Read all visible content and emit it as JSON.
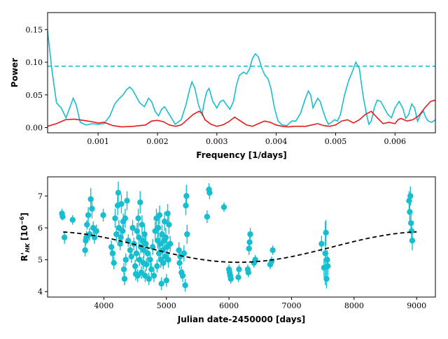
{
  "chart_data": [
    {
      "type": "line",
      "xlabel": "Frequency [1/days]",
      "ylabel": "Power",
      "xlim": [
        0.00015,
        0.00668
      ],
      "ylim": [
        -0.008,
        0.176
      ],
      "x_ticks": [
        0.001,
        0.002,
        0.003,
        0.004,
        0.005,
        0.006
      ],
      "x_tick_labels": [
        "0.001",
        "0.002",
        "0.003",
        "0.004",
        "0.005",
        "0.006"
      ],
      "y_ticks": [
        0.0,
        0.05,
        0.1,
        0.15
      ],
      "y_tick_labels": [
        "0.00",
        "0.05",
        "0.10",
        "0.15"
      ],
      "threshold": {
        "y": 0.094,
        "color": "#17becf",
        "style": "dashed"
      },
      "series": [
        {
          "color": "#17becf",
          "x": [
            0.00015,
            0.00022,
            0.0003,
            0.00038,
            0.00046,
            0.00053,
            0.00058,
            0.00063,
            0.0007,
            0.0008,
            0.0009,
            0.001,
            0.0011,
            0.0012,
            0.00128,
            0.00135,
            0.00142,
            0.00148,
            0.00153,
            0.00158,
            0.00164,
            0.0017,
            0.00178,
            0.00185,
            0.0019,
            0.00196,
            0.00202,
            0.00207,
            0.00212,
            0.0022,
            0.0023,
            0.0024,
            0.00248,
            0.00254,
            0.00258,
            0.00263,
            0.00269,
            0.00275,
            0.00279,
            0.00283,
            0.00287,
            0.00293,
            0.003,
            0.00306,
            0.00311,
            0.00316,
            0.00322,
            0.00328,
            0.00333,
            0.00338,
            0.00345,
            0.0035,
            0.00355,
            0.0036,
            0.00365,
            0.0037,
            0.00376,
            0.00381,
            0.00386,
            0.00391,
            0.00397,
            0.00403,
            0.0041,
            0.00418,
            0.00426,
            0.00433,
            0.00441,
            0.00448,
            0.00454,
            0.00458,
            0.00462,
            0.00466,
            0.0047,
            0.00474,
            0.00479,
            0.00484,
            0.00488,
            0.00493,
            0.00498,
            0.00503,
            0.00508,
            0.00515,
            0.00522,
            0.00528,
            0.00534,
            0.0054,
            0.00546,
            0.00552,
            0.00556,
            0.0056,
            0.00565,
            0.0057,
            0.00576,
            0.00582,
            0.00588,
            0.00594,
            0.006,
            0.00607,
            0.00613,
            0.00618,
            0.00623,
            0.00628,
            0.00633,
            0.00638,
            0.00643,
            0.00648,
            0.00652,
            0.00656,
            0.00662,
            0.00668
          ],
          "y": [
            0.148,
            0.09,
            0.038,
            0.03,
            0.015,
            0.032,
            0.045,
            0.035,
            0.008,
            0.004,
            0.006,
            0.005,
            0.006,
            0.018,
            0.036,
            0.044,
            0.05,
            0.058,
            0.062,
            0.058,
            0.048,
            0.038,
            0.032,
            0.045,
            0.04,
            0.025,
            0.018,
            0.028,
            0.032,
            0.02,
            0.005,
            0.012,
            0.035,
            0.058,
            0.07,
            0.06,
            0.035,
            0.02,
            0.04,
            0.055,
            0.06,
            0.04,
            0.03,
            0.04,
            0.042,
            0.035,
            0.028,
            0.04,
            0.065,
            0.08,
            0.085,
            0.082,
            0.09,
            0.106,
            0.113,
            0.108,
            0.09,
            0.08,
            0.075,
            0.06,
            0.03,
            0.01,
            0.004,
            0.003,
            0.01,
            0.01,
            0.022,
            0.042,
            0.056,
            0.05,
            0.03,
            0.038,
            0.045,
            0.04,
            0.025,
            0.012,
            0.005,
            0.008,
            0.012,
            0.01,
            0.02,
            0.05,
            0.072,
            0.085,
            0.1,
            0.09,
            0.05,
            0.02,
            0.005,
            0.01,
            0.03,
            0.042,
            0.04,
            0.03,
            0.02,
            0.015,
            0.03,
            0.04,
            0.03,
            0.014,
            0.02,
            0.036,
            0.03,
            0.01,
            0.02,
            0.025,
            0.015,
            0.01,
            0.008,
            0.012
          ]
        },
        {
          "color": "#e41a1c",
          "x": [
            0.00015,
            0.0003,
            0.00045,
            0.0006,
            0.00075,
            0.0009,
            0.001,
            0.0011,
            0.00125,
            0.0014,
            0.0016,
            0.0018,
            0.0019,
            0.002,
            0.0021,
            0.0022,
            0.0023,
            0.0024,
            0.0025,
            0.0026,
            0.0027,
            0.00275,
            0.0028,
            0.0029,
            0.003,
            0.0031,
            0.0032,
            0.0033,
            0.0034,
            0.0035,
            0.0036,
            0.0037,
            0.0038,
            0.0039,
            0.004,
            0.0041,
            0.0042,
            0.0043,
            0.0044,
            0.0045,
            0.0046,
            0.0047,
            0.0048,
            0.0049,
            0.005,
            0.0051,
            0.0052,
            0.0053,
            0.0054,
            0.0055,
            0.0056,
            0.0057,
            0.0058,
            0.0059,
            0.006,
            0.00605,
            0.0061,
            0.0062,
            0.0063,
            0.0064,
            0.0065,
            0.0066,
            0.00668
          ],
          "y": [
            0.002,
            0.006,
            0.012,
            0.013,
            0.011,
            0.009,
            0.007,
            0.008,
            0.003,
            0.001,
            0.002,
            0.004,
            0.01,
            0.011,
            0.009,
            0.004,
            0.002,
            0.004,
            0.012,
            0.02,
            0.025,
            0.022,
            0.012,
            0.005,
            0.002,
            0.004,
            0.009,
            0.016,
            0.01,
            0.004,
            0.002,
            0.006,
            0.01,
            0.008,
            0.004,
            0.002,
            0.001,
            0.002,
            0.002,
            0.002,
            0.004,
            0.006,
            0.003,
            0.002,
            0.004,
            0.01,
            0.012,
            0.007,
            0.012,
            0.02,
            0.025,
            0.015,
            0.006,
            0.008,
            0.006,
            0.012,
            0.014,
            0.01,
            0.012,
            0.018,
            0.03,
            0.04,
            0.042
          ]
        }
      ]
    },
    {
      "type": "scatter",
      "xlabel": "Julian date-2450000 [days]",
      "ylabel": "R'HK [10^-6]",
      "ylabel_parts": {
        "main": "R'",
        "sub": "HK",
        "unit": "[10",
        "exp": "−6",
        "close": "]"
      },
      "xlim": [
        3100,
        9300
      ],
      "ylim": [
        3.83,
        7.6
      ],
      "x_ticks": [
        4000,
        5000,
        6000,
        7000,
        8000,
        9000
      ],
      "x_tick_labels": [
        "4000",
        "5000",
        "6000",
        "7000",
        "8000",
        "9000"
      ],
      "y_ticks": [
        4,
        5,
        6,
        7
      ],
      "y_tick_labels": [
        "4",
        "5",
        "6",
        "7"
      ],
      "marker_color": "#17becf",
      "fit": {
        "style": "dashed",
        "color": "#000000",
        "x_start": 3350,
        "x_end": 9000,
        "mean": 5.4,
        "amplitude": 0.48,
        "period": 6000,
        "phase_x": 9150
      },
      "points": [
        {
          "x": 3330,
          "y": 6.45,
          "e": 0.15
        },
        {
          "x": 3340,
          "y": 6.35,
          "e": 0.12
        },
        {
          "x": 3370,
          "y": 5.7,
          "e": 0.2
        },
        {
          "x": 3500,
          "y": 6.25,
          "e": 0.15
        },
        {
          "x": 3700,
          "y": 5.3,
          "e": 0.2
        },
        {
          "x": 3710,
          "y": 5.6,
          "e": 0.15
        },
        {
          "x": 3720,
          "y": 5.7,
          "e": 0.2
        },
        {
          "x": 3730,
          "y": 6.1,
          "e": 0.15
        },
        {
          "x": 3750,
          "y": 6.4,
          "e": 0.25
        },
        {
          "x": 3770,
          "y": 5.8,
          "e": 0.2
        },
        {
          "x": 3790,
          "y": 6.9,
          "e": 0.35
        },
        {
          "x": 3810,
          "y": 6.6,
          "e": 0.3
        },
        {
          "x": 3830,
          "y": 6.0,
          "e": 0.2
        },
        {
          "x": 3850,
          "y": 5.7,
          "e": 0.2
        },
        {
          "x": 3880,
          "y": 5.9,
          "e": 0.2
        },
        {
          "x": 3990,
          "y": 6.4,
          "e": 0.2
        },
        {
          "x": 4120,
          "y": 5.4,
          "e": 0.2
        },
        {
          "x": 4140,
          "y": 5.2,
          "e": 0.25
        },
        {
          "x": 4160,
          "y": 4.9,
          "e": 0.2
        },
        {
          "x": 4180,
          "y": 6.3,
          "e": 0.3
        },
        {
          "x": 4200,
          "y": 5.8,
          "e": 0.25
        },
        {
          "x": 4220,
          "y": 6.7,
          "e": 0.3
        },
        {
          "x": 4230,
          "y": 7.1,
          "e": 0.35
        },
        {
          "x": 4240,
          "y": 6.0,
          "e": 0.25
        },
        {
          "x": 4260,
          "y": 5.5,
          "e": 0.2
        },
        {
          "x": 4270,
          "y": 5.7,
          "e": 0.2
        },
        {
          "x": 4280,
          "y": 6.75,
          "e": 0.3
        },
        {
          "x": 4300,
          "y": 5.9,
          "e": 0.2
        },
        {
          "x": 4310,
          "y": 6.2,
          "e": 0.25
        },
        {
          "x": 4320,
          "y": 4.7,
          "e": 0.2
        },
        {
          "x": 4330,
          "y": 4.4,
          "e": 0.2
        },
        {
          "x": 4340,
          "y": 6.3,
          "e": 0.3
        },
        {
          "x": 4350,
          "y": 5.0,
          "e": 0.2
        },
        {
          "x": 4370,
          "y": 6.85,
          "e": 0.3
        },
        {
          "x": 4390,
          "y": 5.6,
          "e": 0.2
        },
        {
          "x": 4420,
          "y": 5.3,
          "e": 0.25
        },
        {
          "x": 4440,
          "y": 5.1,
          "e": 0.2
        },
        {
          "x": 4460,
          "y": 6.0,
          "e": 0.25
        },
        {
          "x": 4480,
          "y": 5.5,
          "e": 0.2
        },
        {
          "x": 4500,
          "y": 4.8,
          "e": 0.2
        },
        {
          "x": 4510,
          "y": 4.55,
          "e": 0.2
        },
        {
          "x": 4520,
          "y": 5.2,
          "e": 0.25
        },
        {
          "x": 4530,
          "y": 5.9,
          "e": 0.25
        },
        {
          "x": 4540,
          "y": 4.5,
          "e": 0.2
        },
        {
          "x": 4550,
          "y": 6.3,
          "e": 0.3
        },
        {
          "x": 4560,
          "y": 5.7,
          "e": 0.25
        },
        {
          "x": 4570,
          "y": 5.0,
          "e": 0.2
        },
        {
          "x": 4580,
          "y": 6.8,
          "e": 0.35
        },
        {
          "x": 4590,
          "y": 5.4,
          "e": 0.2
        },
        {
          "x": 4600,
          "y": 4.6,
          "e": 0.2
        },
        {
          "x": 4610,
          "y": 6.1,
          "e": 0.3
        },
        {
          "x": 4620,
          "y": 5.6,
          "e": 0.25
        },
        {
          "x": 4630,
          "y": 4.9,
          "e": 0.2
        },
        {
          "x": 4640,
          "y": 5.3,
          "e": 0.25
        },
        {
          "x": 4650,
          "y": 5.8,
          "e": 0.3
        },
        {
          "x": 4660,
          "y": 4.5,
          "e": 0.2
        },
        {
          "x": 4670,
          "y": 5.5,
          "e": 0.25
        },
        {
          "x": 4680,
          "y": 4.85,
          "e": 0.2
        },
        {
          "x": 4700,
          "y": 5.2,
          "e": 0.25
        },
        {
          "x": 4720,
          "y": 4.4,
          "e": 0.2
        },
        {
          "x": 4740,
          "y": 5.0,
          "e": 0.25
        },
        {
          "x": 4760,
          "y": 4.7,
          "e": 0.2
        },
        {
          "x": 4780,
          "y": 5.4,
          "e": 0.25
        },
        {
          "x": 4800,
          "y": 4.5,
          "e": 0.2
        },
        {
          "x": 4820,
          "y": 5.9,
          "e": 0.3
        },
        {
          "x": 4840,
          "y": 6.3,
          "e": 0.3
        },
        {
          "x": 4850,
          "y": 4.8,
          "e": 0.2
        },
        {
          "x": 4860,
          "y": 5.6,
          "e": 0.25
        },
        {
          "x": 4870,
          "y": 6.0,
          "e": 0.3
        },
        {
          "x": 4880,
          "y": 5.2,
          "e": 0.25
        },
        {
          "x": 4890,
          "y": 6.4,
          "e": 0.3
        },
        {
          "x": 4900,
          "y": 5.5,
          "e": 0.25
        },
        {
          "x": 4910,
          "y": 5.0,
          "e": 0.25
        },
        {
          "x": 4920,
          "y": 4.25,
          "e": 0.2
        },
        {
          "x": 4930,
          "y": 5.8,
          "e": 0.3
        },
        {
          "x": 4940,
          "y": 5.3,
          "e": 0.25
        },
        {
          "x": 4950,
          "y": 4.9,
          "e": 0.2
        },
        {
          "x": 4960,
          "y": 5.6,
          "e": 0.25
        },
        {
          "x": 4970,
          "y": 6.2,
          "e": 0.3
        },
        {
          "x": 4980,
          "y": 5.1,
          "e": 0.25
        },
        {
          "x": 4990,
          "y": 5.7,
          "e": 0.3
        },
        {
          "x": 5000,
          "y": 4.35,
          "e": 0.2
        },
        {
          "x": 5010,
          "y": 5.4,
          "e": 0.25
        },
        {
          "x": 5020,
          "y": 6.45,
          "e": 0.3
        },
        {
          "x": 5030,
          "y": 5.0,
          "e": 0.25
        },
        {
          "x": 5040,
          "y": 6.1,
          "e": 0.3
        },
        {
          "x": 5060,
          "y": 5.5,
          "e": 0.25
        },
        {
          "x": 5200,
          "y": 5.3,
          "e": 0.25
        },
        {
          "x": 5210,
          "y": 4.9,
          "e": 0.2
        },
        {
          "x": 5220,
          "y": 5.1,
          "e": 0.25
        },
        {
          "x": 5240,
          "y": 4.6,
          "e": 0.2
        },
        {
          "x": 5260,
          "y": 4.5,
          "e": 0.2
        },
        {
          "x": 5280,
          "y": 5.2,
          "e": 0.25
        },
        {
          "x": 5300,
          "y": 4.2,
          "e": 0.2
        },
        {
          "x": 5310,
          "y": 6.7,
          "e": 0.3
        },
        {
          "x": 5320,
          "y": 7.0,
          "e": 0.35
        },
        {
          "x": 5330,
          "y": 5.8,
          "e": 0.3
        },
        {
          "x": 5650,
          "y": 6.35,
          "e": 0.2
        },
        {
          "x": 5680,
          "y": 7.2,
          "e": 0.2
        },
        {
          "x": 5690,
          "y": 7.1,
          "e": 0.2
        },
        {
          "x": 5920,
          "y": 6.65,
          "e": 0.15
        },
        {
          "x": 6000,
          "y": 4.7,
          "e": 0.15
        },
        {
          "x": 6010,
          "y": 4.6,
          "e": 0.15
        },
        {
          "x": 6020,
          "y": 4.5,
          "e": 0.15
        },
        {
          "x": 6030,
          "y": 4.4,
          "e": 0.15
        },
        {
          "x": 6150,
          "y": 4.45,
          "e": 0.15
        },
        {
          "x": 6160,
          "y": 4.7,
          "e": 0.15
        },
        {
          "x": 6300,
          "y": 4.7,
          "e": 0.15
        },
        {
          "x": 6310,
          "y": 4.6,
          "e": 0.15
        },
        {
          "x": 6320,
          "y": 5.35,
          "e": 0.2
        },
        {
          "x": 6330,
          "y": 5.55,
          "e": 0.2
        },
        {
          "x": 6340,
          "y": 5.8,
          "e": 0.2
        },
        {
          "x": 6400,
          "y": 4.9,
          "e": 0.15
        },
        {
          "x": 6420,
          "y": 5.0,
          "e": 0.15
        },
        {
          "x": 6660,
          "y": 4.85,
          "e": 0.15
        },
        {
          "x": 6680,
          "y": 4.95,
          "e": 0.15
        },
        {
          "x": 6700,
          "y": 5.3,
          "e": 0.15
        },
        {
          "x": 7480,
          "y": 5.5,
          "e": 0.25
        },
        {
          "x": 7520,
          "y": 4.75,
          "e": 0.3
        },
        {
          "x": 7540,
          "y": 5.2,
          "e": 1.0
        },
        {
          "x": 7550,
          "y": 5.85,
          "e": 0.4
        },
        {
          "x": 7560,
          "y": 4.4,
          "e": 0.3
        },
        {
          "x": 7570,
          "y": 5.0,
          "e": 0.3
        },
        {
          "x": 7580,
          "y": 4.8,
          "e": 0.3
        },
        {
          "x": 8880,
          "y": 6.85,
          "e": 0.3
        },
        {
          "x": 8890,
          "y": 6.5,
          "e": 0.4
        },
        {
          "x": 8900,
          "y": 7.0,
          "e": 0.3
        },
        {
          "x": 8910,
          "y": 6.15,
          "e": 0.3
        },
        {
          "x": 8920,
          "y": 5.9,
          "e": 0.3
        },
        {
          "x": 8930,
          "y": 5.6,
          "e": 0.3
        }
      ]
    }
  ]
}
